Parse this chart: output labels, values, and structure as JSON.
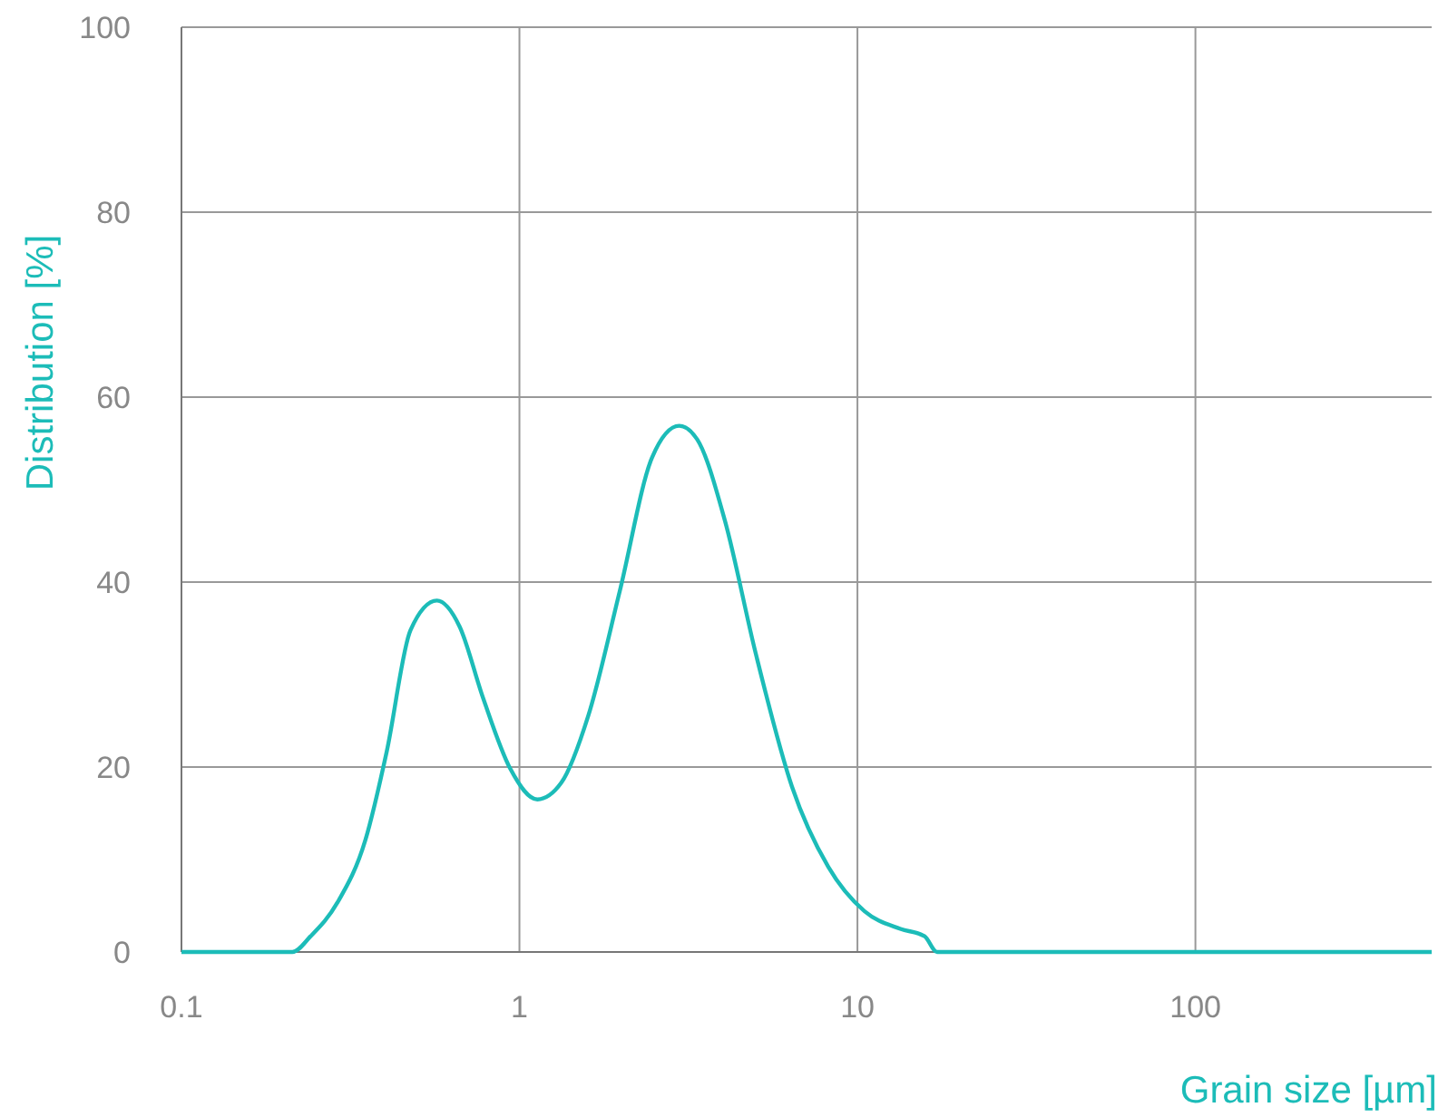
{
  "chart_data": {
    "type": "line",
    "xlabel": "Grain size [µm]",
    "ylabel": "Distribution [%]",
    "log": "x",
    "xlim": [
      0.1,
      500
    ],
    "xticks": [
      0.1,
      1,
      10,
      100
    ],
    "ylim": [
      0,
      100
    ],
    "yticks": [
      0,
      20,
      40,
      60,
      80,
      100
    ],
    "grid": true,
    "series": [
      {
        "color": "#1cbcb8",
        "x": [
          0.1,
          0.213,
          0.241,
          0.29,
          0.35,
          0.405,
          0.476,
          0.57,
          0.665,
          0.78,
          0.94,
          1.13,
          1.33,
          1.6,
          1.98,
          2.47,
          2.97,
          3.36,
          4.05,
          5.0,
          6.4,
          8.2,
          10.5,
          13.4,
          15.8,
          17.2,
          500
        ],
        "values": [
          0,
          0,
          1.7,
          5.4,
          12.1,
          21.7,
          34.8,
          38,
          35.2,
          27.5,
          19.8,
          16.5,
          18.3,
          25.6,
          39,
          53.5,
          56.9,
          55.4,
          46.7,
          32.3,
          17.9,
          9.2,
          4.4,
          2.5,
          1.7,
          0,
          0
        ]
      }
    ]
  }
}
